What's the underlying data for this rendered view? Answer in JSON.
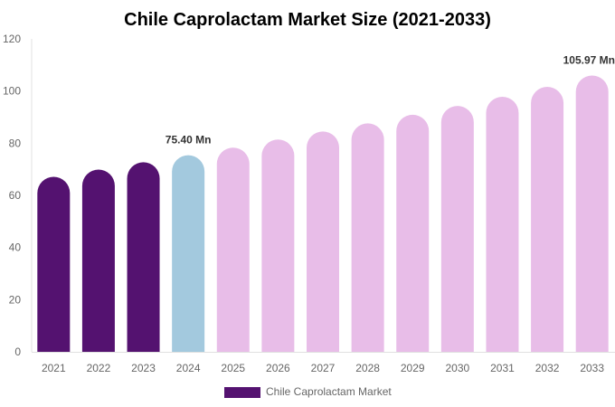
{
  "chart_data": {
    "type": "bar",
    "title": "Chile Caprolactam Market Size (2021-2033)",
    "xlabel": "",
    "ylabel": "",
    "ylim": [
      0,
      120
    ],
    "yticks": [
      0,
      20,
      40,
      60,
      80,
      100,
      120
    ],
    "grid": false,
    "legend_placement": "bottom",
    "categories": [
      "2021",
      "2022",
      "2023",
      "2024",
      "2025",
      "2026",
      "2027",
      "2028",
      "2029",
      "2030",
      "2031",
      "2032",
      "2033"
    ],
    "series": [
      {
        "name": "Chile Caprolactam Market",
        "values": [
          67.1,
          69.9,
          72.7,
          75.4,
          78.3,
          81.4,
          84.5,
          87.6,
          90.9,
          94.3,
          97.8,
          101.6,
          105.97
        ]
      }
    ],
    "bar_colors": [
      "#541270",
      "#541270",
      "#541270",
      "#a3c9de",
      "#e8bde8",
      "#e8bde8",
      "#e8bde8",
      "#e8bde8",
      "#e8bde8",
      "#e8bde8",
      "#e8bde8",
      "#e8bde8",
      "#e8bde8"
    ],
    "legend_color": "#541270",
    "data_labels": [
      {
        "index": 3,
        "text": "75.40 Mn"
      },
      {
        "index": 12,
        "text": "105.97 Mn"
      }
    ]
  }
}
